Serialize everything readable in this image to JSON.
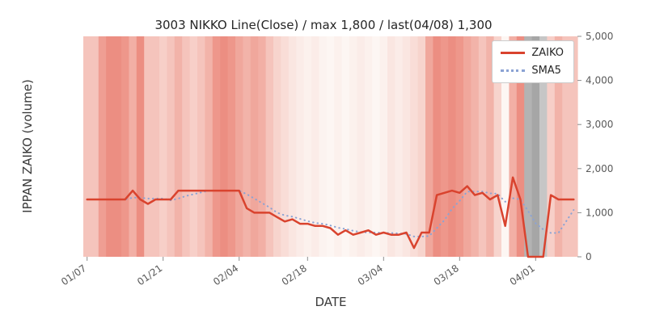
{
  "figure": {
    "title": "3003 NIKKO Line(Close) / max 1,800 / last(04/08) 1,300",
    "xlabel": "DATE",
    "ylabel": "IPPAN ZAIKO (volume)"
  },
  "legend": [
    {
      "label": "ZAIKO",
      "color": "#d9432e",
      "style": "solid"
    },
    {
      "label": "SMA5",
      "color": "#8ba3d4",
      "style": "dotted"
    }
  ],
  "chart_data": {
    "type": "line",
    "title": "3003 NIKKO Line(Close) / max 1,800 / last(04/08) 1,300",
    "xlabel": "DATE",
    "ylabel": "IPPAN ZAIKO (volume)",
    "ylim": [
      0,
      5000
    ],
    "y_ticks": [
      0,
      1000,
      2000,
      3000,
      4000,
      5000
    ],
    "x_ticks": [
      "01/07",
      "01/21",
      "02/04",
      "02/18",
      "03/04",
      "03/18",
      "04/01"
    ],
    "grid": false,
    "legend_position": "upper right",
    "max_value": 1800,
    "last_date": "04/08",
    "last_value": 1300,
    "x_dates": [
      "01/07",
      "01/08",
      "01/09",
      "01/10",
      "01/11",
      "01/14",
      "01/15",
      "01/16",
      "01/17",
      "01/18",
      "01/21",
      "01/22",
      "01/23",
      "01/24",
      "01/25",
      "01/28",
      "01/29",
      "01/30",
      "01/31",
      "02/01",
      "02/04",
      "02/05",
      "02/06",
      "02/07",
      "02/08",
      "02/12",
      "02/13",
      "02/14",
      "02/15",
      "02/18",
      "02/19",
      "02/20",
      "02/21",
      "02/22",
      "02/25",
      "02/26",
      "02/27",
      "02/28",
      "03/01",
      "03/04",
      "03/05",
      "03/06",
      "03/07",
      "03/08",
      "03/11",
      "03/12",
      "03/13",
      "03/14",
      "03/15",
      "03/18",
      "03/19",
      "03/20",
      "03/21",
      "03/22",
      "03/25",
      "03/26",
      "03/27",
      "03/28",
      "03/29",
      "04/01",
      "04/02",
      "04/03",
      "04/04",
      "04/05",
      "04/08"
    ],
    "series": [
      {
        "name": "ZAIKO",
        "color": "#d9432e",
        "style": "solid",
        "values": [
          1300,
          1300,
          1300,
          1300,
          1300,
          1300,
          1500,
          1300,
          1200,
          1300,
          1300,
          1300,
          1500,
          1500,
          1500,
          1500,
          1500,
          1500,
          1500,
          1500,
          1500,
          1100,
          1000,
          1000,
          1000,
          900,
          800,
          850,
          750,
          750,
          700,
          700,
          650,
          500,
          600,
          500,
          550,
          600,
          500,
          550,
          500,
          500,
          550,
          200,
          550,
          550,
          1400,
          1450,
          1500,
          1450,
          1600,
          1400,
          1450,
          1300,
          1400,
          700,
          1800,
          1300,
          0,
          0,
          0,
          1400,
          1300,
          1300,
          1300
        ]
      },
      {
        "name": "SMA5",
        "color": "#8ba3d4",
        "style": "dotted",
        "values": [
          null,
          null,
          null,
          null,
          1300,
          1300,
          1340,
          1340,
          1320,
          1320,
          1320,
          1280,
          1320,
          1380,
          1420,
          1460,
          1500,
          1500,
          1500,
          1500,
          1500,
          1420,
          1320,
          1220,
          1120,
          1000,
          940,
          910,
          860,
          810,
          770,
          750,
          710,
          660,
          630,
          590,
          560,
          550,
          550,
          540,
          540,
          530,
          520,
          460,
          460,
          470,
          650,
          830,
          1090,
          1270,
          1480,
          1480,
          1480,
          1440,
          1430,
          1250,
          1330,
          1300,
          1040,
          760,
          620,
          540,
          540,
          800,
          1060
        ]
      }
    ],
    "background_bands": {
      "description": "vertical per-date background shading",
      "colors": [
        "#f5c4bc",
        "#f5c4bc",
        "#ef9e93",
        "#ec8e82",
        "#ec8e82",
        "#ee978b",
        "#f2afa5",
        "#ec8e82",
        "#f5c4bc",
        "#f5c4bc",
        "#f7cfc8",
        "#f5c4bc",
        "#f2b3a9",
        "#f5c4bc",
        "#f7cfc8",
        "#f5c4bc",
        "#f2b3a9",
        "#ee978b",
        "#ec8e82",
        "#ee978b",
        "#f0a79c",
        "#f2b3a9",
        "#f0a79c",
        "#f2afa5",
        "#f5c4bc",
        "#f7d4cd",
        "#f9ddd7",
        "#fae6e1",
        "#fbece8",
        "#fcf1ed",
        "#fbece8",
        "#fcf3f0",
        "#fdf6f3",
        "#fcf1ed",
        "#fdf6f3",
        "#fcf1ed",
        "#fbece8",
        "#fcf1ed",
        "#fdf6f3",
        "#fcf1ed",
        "#fae6e1",
        "#fbece8",
        "#fae6e1",
        "#f9ddd7",
        "#f7d4cd",
        "#f0a79c",
        "#ec8e82",
        "#ee978b",
        "#ec8e82",
        "#ee978b",
        "#f0a79c",
        "#f2b3a9",
        "#f5c4bc",
        "#f2b3a9",
        "#f7d4cd",
        "#fdf6f3",
        "#f2afa5",
        "#ec8e82",
        "#b3b3b3",
        "#a6a6a6",
        "#c6c6c6",
        "#f7cfc8",
        "#f2b3a9",
        "#f5c4bc",
        "#f5c4bc"
      ]
    },
    "axis_colors": {
      "tick_label": "#595959",
      "tick_mark": "#8c8c8c"
    }
  }
}
